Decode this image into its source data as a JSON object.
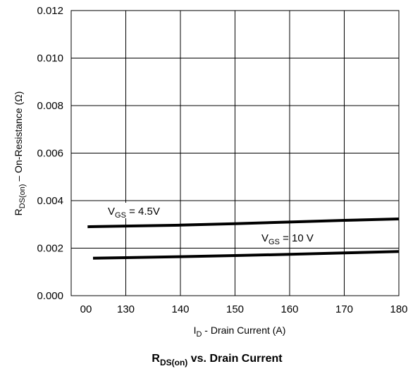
{
  "chart_data": {
    "type": "line",
    "title": {
      "main": "R",
      "sub": "DS(on)",
      "rest": " vs. Drain Current"
    },
    "xlabel": {
      "main": "I",
      "sub": "D",
      "rest": "  -  Drain Current (A)"
    },
    "ylabel": {
      "main": "R",
      "sub": "DS(on)",
      "rest": " – On-Resistance (Ω)"
    },
    "x_ticks": [
      "00",
      "130",
      "140",
      "150",
      "160",
      "170",
      "180"
    ],
    "y_ticks": [
      "0.000",
      "0.002",
      "0.004",
      "0.006",
      "0.008",
      "0.010",
      "0.012"
    ],
    "xlim": [
      120,
      180
    ],
    "ylim": [
      0,
      0.012
    ],
    "grid": true,
    "series": [
      {
        "name": {
          "main": "V",
          "sub": "GS",
          "rest": " = 4.5V"
        },
        "x": [
          123,
          130,
          140,
          150,
          160,
          170,
          180
        ],
        "y": [
          0.0029,
          0.00293,
          0.00297,
          0.00303,
          0.0031,
          0.00317,
          0.00323
        ]
      },
      {
        "name": {
          "main": "V",
          "sub": "GS",
          "rest": " = 10 V"
        },
        "x": [
          124,
          130,
          140,
          150,
          160,
          170,
          180
        ],
        "y": [
          0.00158,
          0.0016,
          0.00164,
          0.00169,
          0.00174,
          0.0018,
          0.00186
        ]
      }
    ]
  }
}
